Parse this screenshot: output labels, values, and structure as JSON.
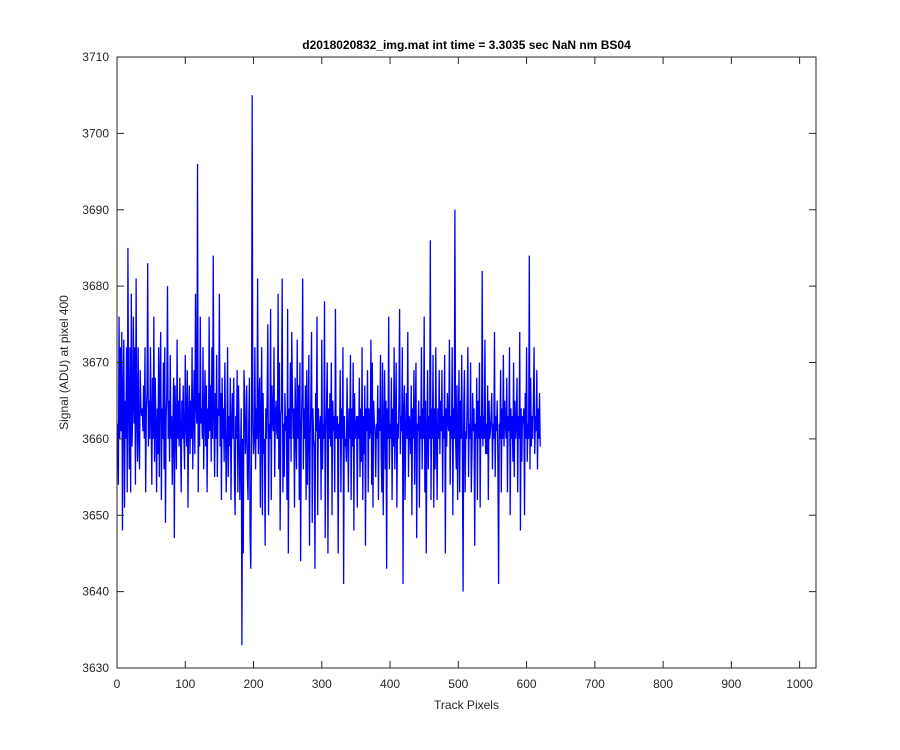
{
  "chart_data": {
    "type": "line",
    "title": "d2018020832_img.mat int time = 3.3035 sec  NaN nm BS04",
    "xlabel": "Track Pixels",
    "ylabel": "Signal (ADU) at pixel 400",
    "xlim": [
      0,
      1024
    ],
    "ylim": [
      3630,
      3710
    ],
    "xticks": [
      0,
      100,
      200,
      300,
      400,
      500,
      600,
      700,
      800,
      900,
      1000
    ],
    "yticks": [
      3630,
      3640,
      3650,
      3660,
      3670,
      3680,
      3690,
      3700,
      3710
    ],
    "grid": false,
    "series_color": "#0000ff",
    "series": [
      {
        "x_start": 1,
        "x_step": 1,
        "values": [
          3662,
          3654,
          3676,
          3660,
          3672,
          3661,
          3674,
          3648,
          3666,
          3673,
          3651,
          3665,
          3660,
          3672,
          3653,
          3685,
          3664,
          3656,
          3672,
          3653,
          3679,
          3659,
          3664,
          3676,
          3662,
          3672,
          3654,
          3681,
          3663,
          3657,
          3672,
          3660,
          3656,
          3669,
          3664,
          3663,
          3664,
          3661,
          3667,
          3660,
          3672,
          3653,
          3664,
          3666,
          3683,
          3659,
          3665,
          3660,
          3672,
          3663,
          3654,
          3668,
          3660,
          3676,
          3657,
          3668,
          3662,
          3653,
          3664,
          3658,
          3672,
          3655,
          3668,
          3674,
          3652,
          3664,
          3660,
          3670,
          3656,
          3672,
          3649,
          3663,
          3666,
          3680,
          3660,
          3665,
          3657,
          3671,
          3660,
          3663,
          3654,
          3662,
          3668,
          3647,
          3667,
          3662,
          3656,
          3673,
          3660,
          3665,
          3659,
          3668,
          3661,
          3653,
          3665,
          3660,
          3667,
          3660,
          3656,
          3671,
          3662,
          3659,
          3669,
          3651,
          3663,
          3667,
          3658,
          3665,
          3660,
          3672,
          3656,
          3663,
          3669,
          3658,
          3679,
          3664,
          3662,
          3696,
          3653,
          3666,
          3659,
          3676,
          3662,
          3664,
          3660,
          3672,
          3656,
          3663,
          3669,
          3659,
          3667,
          3653,
          3664,
          3660,
          3676,
          3661,
          3667,
          3657,
          3672,
          3660,
          3684,
          3663,
          3655,
          3666,
          3660,
          3671,
          3655,
          3664,
          3663,
          3679,
          3659,
          3666,
          3652,
          3668,
          3660,
          3664,
          3657,
          3670,
          3661,
          3653,
          3660,
          3672,
          3655,
          3663,
          3659,
          3668,
          3652,
          3662,
          3666,
          3660,
          3668,
          3655,
          3650,
          3663,
          3660,
          3669,
          3653,
          3667,
          3660,
          3652,
          3658,
          3664,
          3633,
          3660,
          3645,
          3669,
          3666,
          3658,
          3660,
          3667,
          3655,
          3652,
          3662,
          3668,
          3647,
          3643,
          3659,
          3705,
          3662,
          3658
        ]
      }
    ],
    "tail_values": [
      3660,
      3672,
      3656,
      3664,
      3660,
      3681,
      3658,
      3664,
      3668,
      3651,
      3663,
      3672,
      3650,
      3666,
      3658,
      3660,
      3646,
      3664,
      3660,
      3666,
      3675,
      3650,
      3662,
      3660,
      3677,
      3652,
      3667,
      3663,
      3661,
      3672,
      3655,
      3663,
      3665,
      3661,
      3660,
      3679,
      3656,
      3670,
      3648,
      3663,
      3664,
      3681,
      3653,
      3662,
      3655,
      3666,
      3661,
      3663,
      3652,
      3677,
      3645,
      3664,
      3660,
      3670,
      3657,
      3674,
      3666,
      3660,
      3664,
      3651,
      3668,
      3661,
      3656,
      3673,
      3660,
      3667,
      3652,
      3670,
      3644,
      3661,
      3666,
      3681,
      3656,
      3664,
      3660,
      3667,
      3652,
      3669,
      3654,
      3662,
      3671,
      3646,
      3660,
      3665,
      3674,
      3649,
      3664,
      3660,
      3659,
      3643,
      3666,
      3661,
      3676,
      3650,
      3664,
      3660,
      3661,
      3663,
      3652,
      3673,
      3656,
      3662,
      3660,
      3678,
      3647,
      3660,
      3665,
      3670,
      3645,
      3664,
      3660,
      3666,
      3659,
      3670,
      3650,
      3665,
      3661,
      3663,
      3653,
      3677,
      3660,
      3661,
      3663,
      3645,
      3662,
      3660,
      3669,
      3653,
      3664,
      3660,
      3672,
      3641,
      3663,
      3659,
      3660,
      3657,
      3668,
      3661,
      3653,
      3664,
      3660,
      3671,
      3652,
      3664,
      3659,
      3670,
      3648,
      3666,
      3660,
      3661,
      3663,
      3651,
      3663,
      3660,
      3668,
      3655,
      3664,
      3657,
      3672,
      3652,
      3663,
      3658,
      3667,
      3646,
      3664,
      3661,
      3669,
      3653,
      3664,
      3660,
      3661,
      3673,
      3654,
      3670,
      3651,
      3665,
      3662,
      3661,
      3655,
      3662,
      3660,
      3667,
      3652,
      3664,
      3661,
      3671,
      3658,
      3653,
      3670,
      3650,
      3661,
      3669,
      3656,
      3665,
      3643,
      3664,
      3660,
      3676,
      3656,
      3662,
      3660,
      3668,
      3652,
      3664,
      3659,
      3672,
      3656,
      3663,
      3670,
      3651,
      3662,
      3660,
      3665,
      3677,
      3658,
      3663,
      3661,
      3672,
      3641,
      3664,
      3667,
      3652,
      3661,
      3666,
      3660,
      3674,
      3655,
      3663,
      3662,
      3658,
      3667,
      3650,
      3664,
      3660,
      3669,
      3654,
      3663,
      3670,
      3647,
      3662,
      3661,
      3665,
      3651,
      3663,
      3660,
      3672,
      3656,
      3664,
      3660,
      3676,
      3653,
      3665,
      3645,
      3661,
      3669,
      3656,
      3663,
      3660,
      3686,
      3652,
      3664,
      3660,
      3671,
      3651,
      3664,
      3656,
      3672,
      3660,
      3652,
      3664,
      3660,
      3669,
      3658,
      3665,
      3661,
      3669,
      3653,
      3663,
      3660,
      3671,
      3645,
      3664,
      3659,
      3666,
      3662,
      3661,
      3673,
      3654,
      3663,
      3660,
      3672,
      3650,
      3664,
      3660,
      3690,
      3660,
      3656,
      3667,
      3652,
      3662,
      3669,
      3653,
      3665,
      3660,
      3671,
      3658,
      3640,
      3664,
      3669,
      3653,
      3661,
      3660,
      3665,
      3672,
      3655,
      3662,
      3660,
      3670,
      3653,
      3658,
      3666,
      3661,
      3664,
      3646,
      3662,
      3660,
      3668,
      3652,
      3665,
      3660,
      3670,
      3651,
      3663,
      3660,
      3682,
      3659,
      3663,
      3660,
      3673,
      3658,
      3662,
      3658,
      3667,
      3652,
      3665,
      3660,
      3661,
      3663,
      3666,
      3656,
      3662,
      3660,
      3674,
      3655,
      3663,
      3661,
      3665,
      3657,
      3641,
      3662,
      3660,
      3669,
      3653,
      3664,
      3660,
      3671,
      3659,
      3665,
      3662,
      3660,
      3668,
      3653,
      3663,
      3661,
      3672,
      3650,
      3664,
      3660,
      3663,
      3657,
      3670,
      3655,
      3665,
      3660,
      3662,
      3668,
      3653,
      3663,
      3660,
      3674,
      3648,
      3664,
      3657,
      3663,
      3662,
      3664,
      3650,
      3666,
      3660,
      3672,
      3657,
      3662,
      3660,
      3684,
      3656,
      3668,
      3659,
      3663,
      3660,
      3665,
      3672,
      3658,
      3663,
      3661,
      3669,
      3656,
      3664,
      3660,
      3666,
      3659
    ]
  }
}
